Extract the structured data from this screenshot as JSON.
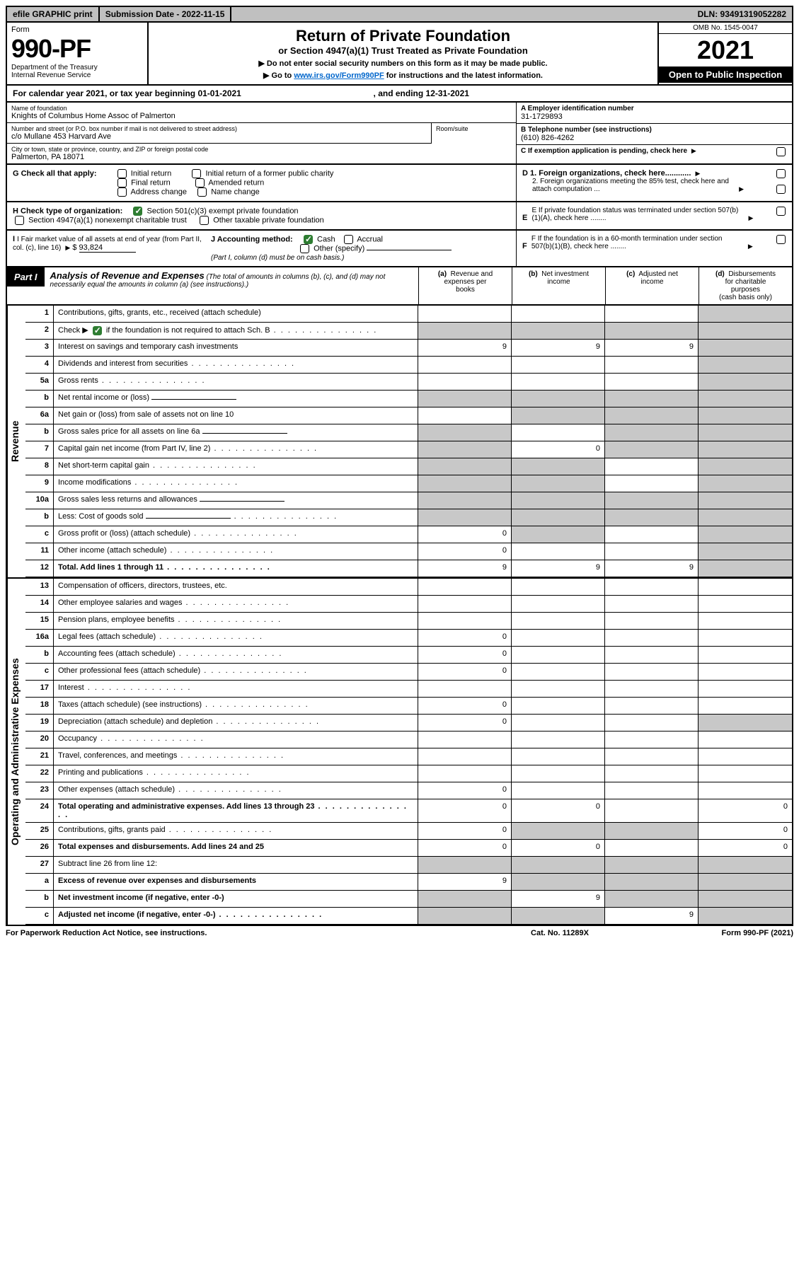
{
  "topbar": {
    "efile": "efile GRAPHIC print",
    "sub_lbl": "Submission Date - 2022-11-15",
    "dln": "DLN: 93491319052282"
  },
  "header": {
    "form_lbl": "Form",
    "form_no": "990-PF",
    "dept": "Department of the Treasury",
    "irs": "Internal Revenue Service",
    "title": "Return of Private Foundation",
    "subtitle": "or Section 4947(a)(1) Trust Treated as Private Foundation",
    "instr1": "▶ Do not enter social security numbers on this form as it may be made public.",
    "instr2_pre": "▶ Go to ",
    "instr2_link": "www.irs.gov/Form990PF",
    "instr2_post": " for instructions and the latest information.",
    "omb": "OMB No. 1545-0047",
    "year": "2021",
    "inspect": "Open to Public Inspection"
  },
  "calyear": {
    "pre": "For calendar year 2021, or tax year beginning ",
    "begin": "01-01-2021",
    "mid": " , and ending ",
    "end": "12-31-2021"
  },
  "info": {
    "name_lbl": "Name of foundation",
    "name_val": "Knights of Columbus Home Assoc of Palmerton",
    "addr_lbl": "Number and street (or P.O. box number if mail is not delivered to street address)",
    "addr_val": "c/o Mullane 453 Harvard Ave",
    "room_lbl": "Room/suite",
    "city_lbl": "City or town, state or province, country, and ZIP or foreign postal code",
    "city_val": "Palmerton, PA  18071",
    "ein_lbl": "A Employer identification number",
    "ein_val": "31-1729893",
    "tel_lbl": "B Telephone number (see instructions)",
    "tel_val": "(610) 826-4262",
    "c_lbl": "C If exemption application is pending, check here"
  },
  "checks": {
    "g_lbl": "G Check all that apply:",
    "g_opts": [
      "Initial return",
      "Initial return of a former public charity",
      "Final return",
      "Amended return",
      "Address change",
      "Name change"
    ],
    "d1": "D 1. Foreign organizations, check here............",
    "d2": "2. Foreign organizations meeting the 85% test, check here and attach computation ...",
    "h_lbl": "H Check type of organization:",
    "h1": "Section 501(c)(3) exempt private foundation",
    "h2": "Section 4947(a)(1) nonexempt charitable trust",
    "h3": "Other taxable private foundation",
    "e_lbl": "E  If private foundation status was terminated under section 507(b)(1)(A), check here ........",
    "i_lbl": "I Fair market value of all assets at end of year (from Part II, col. (c), line 16)",
    "i_val": "93,824",
    "j_lbl": "J Accounting method:",
    "j_cash": "Cash",
    "j_accr": "Accrual",
    "j_other": "Other (specify)",
    "j_note": "(Part I, column (d) must be on cash basis.)",
    "f_lbl": "F  If the foundation is in a 60-month termination under section 507(b)(1)(B), check here ........"
  },
  "part1": {
    "tag": "Part I",
    "title": "Analysis of Revenue and Expenses",
    "note": " (The total of amounts in columns (b), (c), and (d) may not necessarily equal the amounts in column (a) (see instructions).)",
    "col_a": "(a)  Revenue and expenses per books",
    "col_b": "(b)  Net investment income",
    "col_c": "(c)  Adjusted net income",
    "col_d": "(d)  Disbursements for charitable purposes (cash basis only)"
  },
  "side_rev": "Revenue",
  "side_exp": "Operating and Administrative Expenses",
  "rows_rev": [
    {
      "n": "1",
      "t": "Contributions, gifts, grants, etc., received (attach schedule)",
      "a": "",
      "b": "",
      "c": "",
      "sd": true
    },
    {
      "n": "2",
      "t": "Check ▶ ☑ if the foundation is not required to attach Sch. B",
      "dots": true,
      "sa": true,
      "sb": true,
      "sc": true,
      "sd": true
    },
    {
      "n": "3",
      "t": "Interest on savings and temporary cash investments",
      "a": "9",
      "b": "9",
      "c": "9",
      "sd": true
    },
    {
      "n": "4",
      "t": "Dividends and interest from securities",
      "dots": true,
      "sd": true
    },
    {
      "n": "5a",
      "t": "Gross rents",
      "dots": true,
      "sd": true
    },
    {
      "n": "b",
      "t": "Net rental income or (loss)",
      "line": true,
      "sa": true,
      "sb": true,
      "sc": true,
      "sd": true
    },
    {
      "n": "6a",
      "t": "Net gain or (loss) from sale of assets not on line 10",
      "sb": true,
      "sc": true,
      "sd": true
    },
    {
      "n": "b",
      "t": "Gross sales price for all assets on line 6a",
      "line": true,
      "sa": true,
      "sc": true,
      "sd": true
    },
    {
      "n": "7",
      "t": "Capital gain net income (from Part IV, line 2)",
      "dots": true,
      "sa": true,
      "b": "0",
      "sc": true,
      "sd": true
    },
    {
      "n": "8",
      "t": "Net short-term capital gain",
      "dots": true,
      "sa": true,
      "sb": true,
      "sd": true
    },
    {
      "n": "9",
      "t": "Income modifications",
      "dots": true,
      "sa": true,
      "sb": true,
      "sd": true
    },
    {
      "n": "10a",
      "t": "Gross sales less returns and allowances",
      "line": true,
      "sa": true,
      "sb": true,
      "sc": true,
      "sd": true
    },
    {
      "n": "b",
      "t": "Less: Cost of goods sold",
      "dots": true,
      "line": true,
      "sa": true,
      "sb": true,
      "sc": true,
      "sd": true
    },
    {
      "n": "c",
      "t": "Gross profit or (loss) (attach schedule)",
      "dots": true,
      "a": "0",
      "sb": true,
      "sd": true
    },
    {
      "n": "11",
      "t": "Other income (attach schedule)",
      "dots": true,
      "a": "0",
      "sd": true
    },
    {
      "n": "12",
      "t": "Total. Add lines 1 through 11",
      "bold": true,
      "dots": true,
      "a": "9",
      "b": "9",
      "c": "9",
      "sd": true
    }
  ],
  "rows_exp": [
    {
      "n": "13",
      "t": "Compensation of officers, directors, trustees, etc."
    },
    {
      "n": "14",
      "t": "Other employee salaries and wages",
      "dots": true
    },
    {
      "n": "15",
      "t": "Pension plans, employee benefits",
      "dots": true
    },
    {
      "n": "16a",
      "t": "Legal fees (attach schedule)",
      "dots": true,
      "a": "0"
    },
    {
      "n": "b",
      "t": "Accounting fees (attach schedule)",
      "dots": true,
      "a": "0"
    },
    {
      "n": "c",
      "t": "Other professional fees (attach schedule)",
      "dots": true,
      "a": "0"
    },
    {
      "n": "17",
      "t": "Interest",
      "dots": true
    },
    {
      "n": "18",
      "t": "Taxes (attach schedule) (see instructions)",
      "dots": true,
      "a": "0"
    },
    {
      "n": "19",
      "t": "Depreciation (attach schedule) and depletion",
      "dots": true,
      "a": "0",
      "sd": true
    },
    {
      "n": "20",
      "t": "Occupancy",
      "dots": true
    },
    {
      "n": "21",
      "t": "Travel, conferences, and meetings",
      "dots": true
    },
    {
      "n": "22",
      "t": "Printing and publications",
      "dots": true
    },
    {
      "n": "23",
      "t": "Other expenses (attach schedule)",
      "dots": true,
      "a": "0"
    },
    {
      "n": "24",
      "t": "Total operating and administrative expenses. Add lines 13 through 23",
      "bold": true,
      "dots": true,
      "a": "0",
      "b": "0",
      "d": "0"
    },
    {
      "n": "25",
      "t": "Contributions, gifts, grants paid",
      "dots": true,
      "a": "0",
      "sb": true,
      "sc": true,
      "d": "0"
    },
    {
      "n": "26",
      "t": "Total expenses and disbursements. Add lines 24 and 25",
      "bold": true,
      "a": "0",
      "b": "0",
      "d": "0"
    },
    {
      "n": "27",
      "t": "Subtract line 26 from line 12:",
      "sa": true,
      "sb": true,
      "sc": true,
      "sd": true
    },
    {
      "n": "a",
      "t": "Excess of revenue over expenses and disbursements",
      "bold": true,
      "a": "9",
      "sb": true,
      "sc": true,
      "sd": true
    },
    {
      "n": "b",
      "t": "Net investment income (if negative, enter -0-)",
      "bold": true,
      "sa": true,
      "b": "9",
      "sc": true,
      "sd": true
    },
    {
      "n": "c",
      "t": "Adjusted net income (if negative, enter -0-)",
      "bold": true,
      "dots": true,
      "sa": true,
      "sb": true,
      "c": "9",
      "sd": true
    }
  ],
  "footer": {
    "left": "For Paperwork Reduction Act Notice, see instructions.",
    "mid": "Cat. No. 11289X",
    "right": "Form 990-PF (2021)"
  },
  "colors": {
    "shade": "#c8c8c8",
    "topbar_bg": "#c0c0c0",
    "check_green": "#2e7d32",
    "link": "#0066cc"
  }
}
